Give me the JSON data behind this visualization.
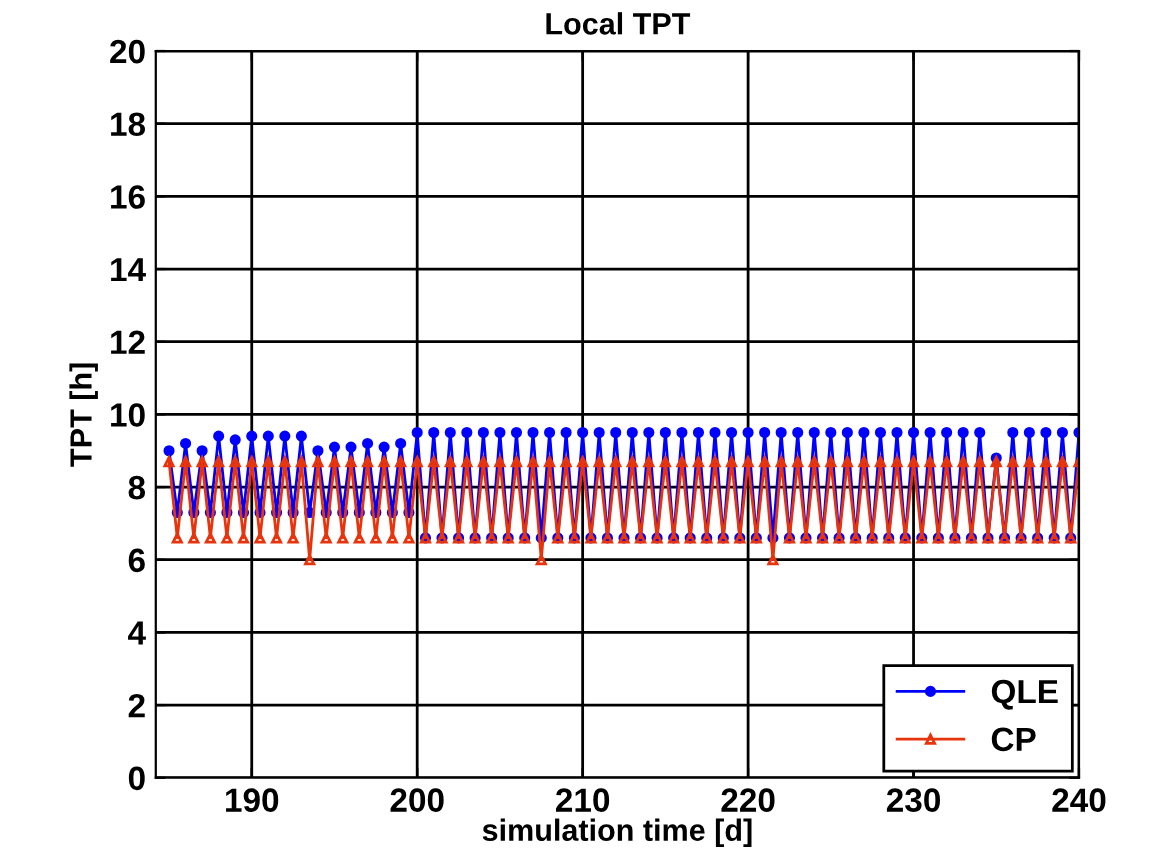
{
  "chart_data": {
    "type": "line",
    "title": "Local TPT",
    "xlabel": "simulation time [d]",
    "ylabel": "TPT [h]",
    "x": [
      185,
      185.5,
      186,
      186.5,
      187,
      187.5,
      188,
      188.5,
      189,
      189.5,
      190,
      190.5,
      191,
      191.5,
      192,
      192.5,
      193,
      193.5,
      194,
      194.5,
      195,
      195.5,
      196,
      196.5,
      197,
      197.5,
      198,
      198.5,
      199,
      199.5,
      200,
      200.5,
      201,
      201.5,
      202,
      202.5,
      203,
      203.5,
      204,
      204.5,
      205,
      205.5,
      206,
      206.5,
      207,
      207.5,
      208,
      208.5,
      209,
      209.5,
      210,
      210.5,
      211,
      211.5,
      212,
      212.5,
      213,
      213.5,
      214,
      214.5,
      215,
      215.5,
      216,
      216.5,
      217,
      217.5,
      218,
      218.5,
      219,
      219.5,
      220,
      220.5,
      221,
      221.5,
      222,
      222.5,
      223,
      223.5,
      224,
      224.5,
      225,
      225.5,
      226,
      226.5,
      227,
      227.5,
      228,
      228.5,
      229,
      229.5,
      230,
      230.5,
      231,
      231.5,
      232,
      232.5,
      233,
      233.5,
      234,
      234.5,
      235,
      235.5,
      236,
      236.5,
      237,
      237.5,
      238,
      238.5,
      239,
      239.5,
      240
    ],
    "series": [
      {
        "name": "QLE",
        "color": "#0000ff",
        "marker": "circle",
        "values": [
          9.0,
          7.3,
          9.2,
          7.3,
          9.0,
          7.3,
          9.4,
          7.3,
          9.3,
          7.3,
          9.4,
          7.3,
          9.4,
          7.3,
          9.4,
          7.3,
          9.4,
          7.3,
          9.0,
          7.3,
          9.1,
          7.3,
          9.1,
          7.3,
          9.2,
          7.3,
          9.1,
          7.3,
          9.2,
          7.3,
          9.5,
          6.6,
          9.5,
          6.6,
          9.5,
          6.6,
          9.5,
          6.6,
          9.5,
          6.6,
          9.5,
          6.6,
          9.5,
          6.6,
          9.5,
          6.6,
          9.5,
          6.6,
          9.5,
          6.6,
          9.5,
          6.6,
          9.5,
          6.6,
          9.5,
          6.6,
          9.5,
          6.6,
          9.5,
          6.6,
          9.5,
          6.6,
          9.5,
          6.6,
          9.5,
          6.6,
          9.5,
          6.6,
          9.5,
          6.6,
          9.5,
          6.6,
          9.5,
          6.6,
          9.5,
          6.6,
          9.5,
          6.6,
          9.5,
          6.6,
          9.5,
          6.6,
          9.5,
          6.6,
          9.5,
          6.6,
          9.5,
          6.6,
          9.5,
          6.6,
          9.5,
          6.6,
          9.5,
          6.6,
          9.5,
          6.6,
          9.5,
          6.6,
          9.5,
          6.6,
          8.8,
          6.6,
          9.5,
          6.6,
          9.5,
          6.6,
          9.5,
          6.6,
          9.5,
          6.6,
          9.5
        ]
      },
      {
        "name": "CP",
        "color": "#e8340c",
        "marker": "triangle",
        "values": [
          8.7,
          6.6,
          8.7,
          6.6,
          8.7,
          6.6,
          8.7,
          6.6,
          8.7,
          6.6,
          8.7,
          6.6,
          8.7,
          6.6,
          8.7,
          6.6,
          8.7,
          6.0,
          8.7,
          6.6,
          8.7,
          6.6,
          8.7,
          6.6,
          8.7,
          6.6,
          8.7,
          6.6,
          8.7,
          6.6,
          8.7,
          6.6,
          8.7,
          6.6,
          8.7,
          6.6,
          8.7,
          6.6,
          8.7,
          6.6,
          8.7,
          6.6,
          8.7,
          6.6,
          8.7,
          6.0,
          8.7,
          6.6,
          8.7,
          6.6,
          8.7,
          6.6,
          8.7,
          6.6,
          8.7,
          6.6,
          8.7,
          6.6,
          8.7,
          6.6,
          8.7,
          6.6,
          8.7,
          6.6,
          8.7,
          6.6,
          8.7,
          6.6,
          8.7,
          6.6,
          8.7,
          6.6,
          8.7,
          6.0,
          8.7,
          6.6,
          8.7,
          6.6,
          8.7,
          6.6,
          8.7,
          6.6,
          8.7,
          6.6,
          8.7,
          6.6,
          8.7,
          6.6,
          8.7,
          6.6,
          8.7,
          6.6,
          8.7,
          6.6,
          8.7,
          6.6,
          8.7,
          6.6,
          8.7,
          6.6,
          8.7,
          6.6,
          8.7,
          6.6,
          8.7,
          6.6,
          8.7,
          6.6,
          8.7,
          6.6,
          8.7
        ]
      }
    ],
    "xlim": [
      184.2,
      240
    ],
    "ylim": [
      0,
      20
    ],
    "xticks": [
      190,
      200,
      210,
      220,
      230,
      240
    ],
    "yticks": [
      0,
      2,
      4,
      6,
      8,
      10,
      12,
      14,
      16,
      18,
      20
    ],
    "grid": true,
    "legend": "bottom right"
  }
}
